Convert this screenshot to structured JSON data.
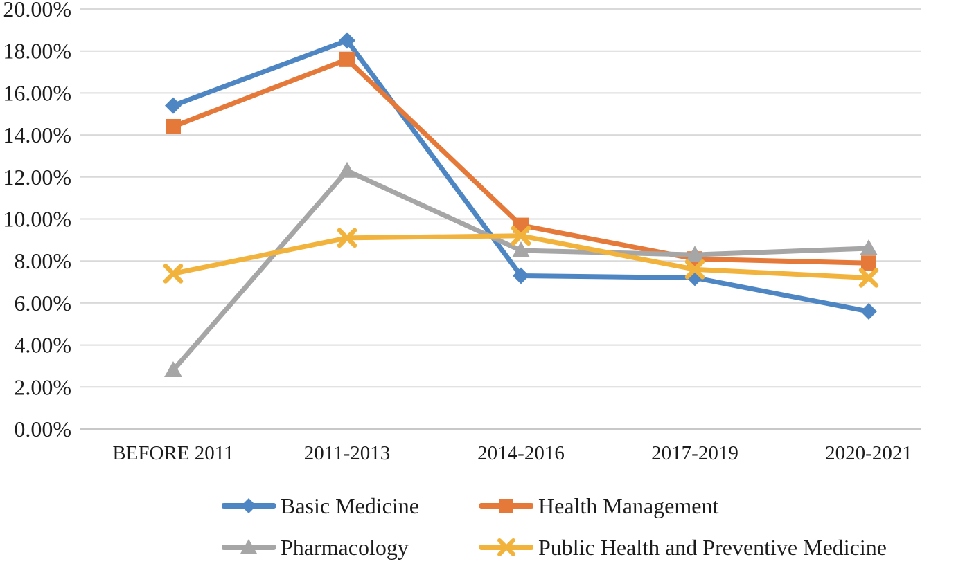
{
  "chart_data": {
    "type": "line",
    "title": "",
    "xlabel": "",
    "ylabel": "",
    "categories": [
      "BEFORE 2011",
      "2011-2013",
      "2014-2016",
      "2017-2019",
      "2020-2021"
    ],
    "series": [
      {
        "name": "Basic Medicine",
        "marker": "diamond",
        "color": "#4E86C4",
        "values": [
          15.4,
          18.5,
          7.3,
          7.2,
          5.6
        ]
      },
      {
        "name": "Health Management",
        "marker": "square",
        "color": "#E5793A",
        "values": [
          14.4,
          17.6,
          9.7,
          8.1,
          7.9
        ]
      },
      {
        "name": "Pharmacology",
        "marker": "triangle",
        "color": "#A6A6A6",
        "values": [
          2.8,
          12.3,
          8.5,
          8.3,
          8.6
        ]
      },
      {
        "name": "Public Health and Preventive Medicine",
        "marker": "x",
        "color": "#F1B33C",
        "values": [
          7.4,
          9.1,
          9.2,
          7.6,
          7.2
        ]
      }
    ],
    "y_axis": {
      "min": 0,
      "max": 20,
      "step": 2,
      "tick_labels": [
        "0.00%",
        "2.00%",
        "4.00%",
        "6.00%",
        "8.00%",
        "10.00%",
        "12.00%",
        "14.00%",
        "16.00%",
        "18.00%",
        "20.00%"
      ]
    },
    "grid": true,
    "legend_position": "bottom"
  },
  "style": {
    "gridline_color": "#D9D9D9",
    "zeroline_color": "#C8C8C8",
    "text_color": "#1C1C1C"
  }
}
